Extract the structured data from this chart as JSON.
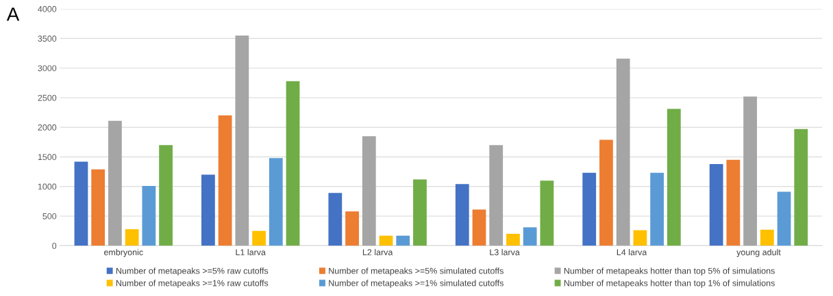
{
  "chart_data": {
    "type": "bar",
    "categories": [
      "embryonic",
      "L1 larva",
      "L2 larva",
      "L3 larva",
      "L4 larva",
      "young adult"
    ],
    "series": [
      {
        "name": "Number of metapeaks >=5% raw cutoffs",
        "color": "#4472c4",
        "values": [
          1420,
          1200,
          890,
          1040,
          1230,
          1380
        ]
      },
      {
        "name": "Number of metapeaks >=5% simulated cutoffs",
        "color": "#ed7d31",
        "values": [
          1290,
          2200,
          580,
          610,
          1790,
          1450
        ]
      },
      {
        "name": "Number of metapeaks hotter than top 5% of simulations",
        "color": "#a5a5a5",
        "values": [
          2110,
          3550,
          1850,
          1700,
          3160,
          2520
        ]
      },
      {
        "name": "Number of metapeaks >=1% raw cutoffs",
        "color": "#ffc000",
        "values": [
          280,
          250,
          170,
          200,
          260,
          270
        ]
      },
      {
        "name": "Number of metapeaks >=1% simulated cutoffs",
        "color": "#5b9bd5",
        "values": [
          1010,
          1480,
          170,
          310,
          1230,
          910
        ]
      },
      {
        "name": "Number of metapeaks hotter than top 1% of simulations",
        "color": "#70ad47",
        "values": [
          1700,
          2780,
          1120,
          1100,
          2310,
          1970
        ]
      }
    ],
    "ylim": [
      0,
      4000
    ],
    "yticks": [
      0,
      500,
      1000,
      1500,
      2000,
      2500,
      3000,
      3500,
      4000
    ],
    "grid": "y",
    "legend": "bottom",
    "annotations": [
      "A"
    ]
  }
}
